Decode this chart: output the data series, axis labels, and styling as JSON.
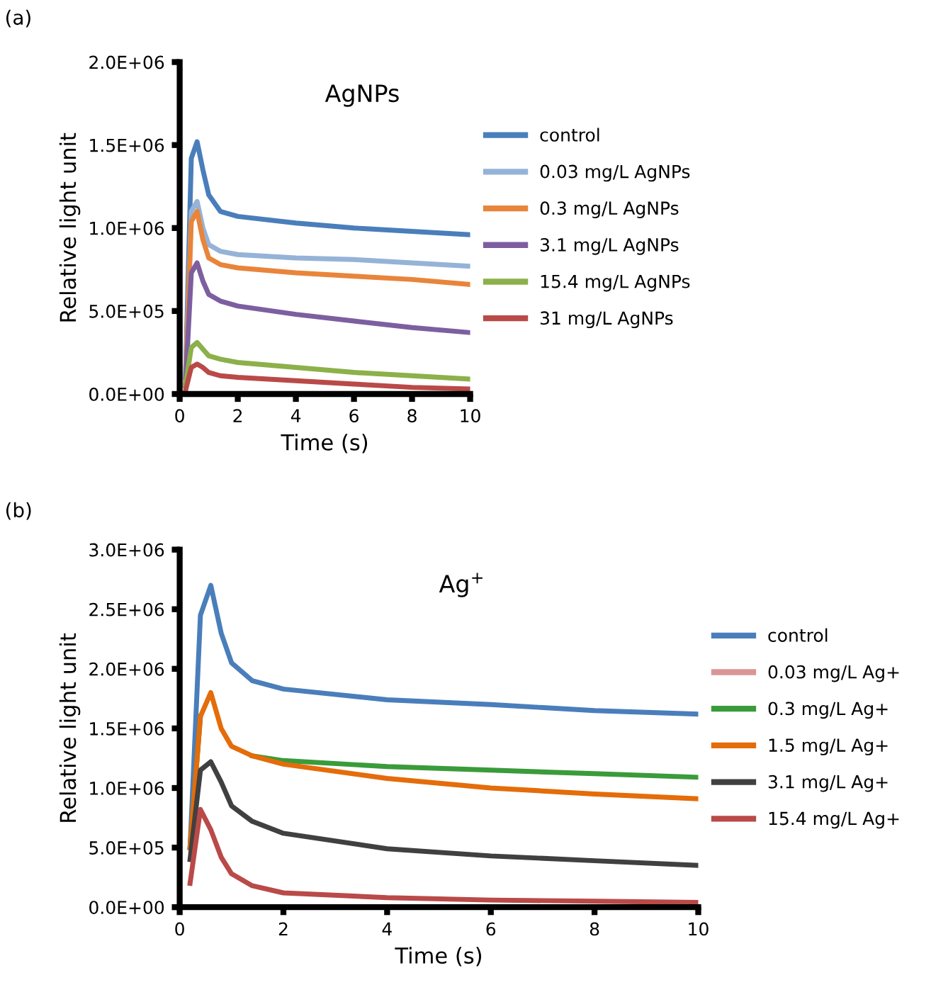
{
  "chart_data": [
    {
      "type": "line",
      "title": "AgNPs",
      "xlabel": "Time (s)",
      "ylabel": "Relative light unit",
      "annotations": [
        "(a)"
      ],
      "x": [
        0.2,
        0.4,
        0.6,
        0.8,
        1.0,
        1.4,
        2,
        4,
        6,
        8,
        10
      ],
      "xlim": [
        0,
        10
      ],
      "xticks": [
        0,
        2,
        4,
        6,
        8,
        10
      ],
      "ylim": [
        0,
        2000000
      ],
      "yticks": [
        {
          "value": 0,
          "label": "0.0E+00"
        },
        {
          "value": 500000,
          "label": "5.0E+05"
        },
        {
          "value": 1000000,
          "label": "1.0E+06"
        },
        {
          "value": 1500000,
          "label": "1.5E+06"
        },
        {
          "value": 2000000,
          "label": "2.0E+06"
        }
      ],
      "legend": "right",
      "grid": false,
      "marker": "none",
      "line_style": "solid",
      "series": [
        {
          "name": "control",
          "color": "#4a7ebb",
          "values": [
            100000,
            1420000,
            1520000,
            1350000,
            1200000,
            1100000,
            1070000,
            1030000,
            1000000,
            980000,
            960000
          ]
        },
        {
          "name": "0.03 mg/L AgNPs",
          "color": "#95b3d7",
          "values": [
            100000,
            1100000,
            1160000,
            1000000,
            900000,
            860000,
            840000,
            820000,
            810000,
            790000,
            770000
          ]
        },
        {
          "name": "0.3 mg/L AgNPs",
          "color": "#e8853a",
          "values": [
            50000,
            1040000,
            1100000,
            930000,
            820000,
            780000,
            760000,
            730000,
            710000,
            690000,
            660000
          ]
        },
        {
          "name": "3.1 mg/L AgNPs",
          "color": "#7d5fa0",
          "values": [
            50000,
            730000,
            790000,
            680000,
            600000,
            560000,
            530000,
            480000,
            440000,
            400000,
            370000
          ]
        },
        {
          "name": "15.4 mg/L AgNPs",
          "color": "#8cb04a",
          "values": [
            50000,
            280000,
            310000,
            270000,
            230000,
            210000,
            190000,
            160000,
            130000,
            110000,
            90000
          ]
        },
        {
          "name": "31 mg/L AgNPs",
          "color": "#b94a48",
          "values": [
            20000,
            160000,
            180000,
            160000,
            130000,
            110000,
            100000,
            80000,
            60000,
            40000,
            30000
          ]
        }
      ]
    },
    {
      "type": "line",
      "title": "Ag$^{+}$",
      "xlabel": "Time (s)",
      "ylabel": "Relative light unit",
      "annotations": [
        "(b)"
      ],
      "x": [
        0.2,
        0.4,
        0.6,
        0.8,
        1.0,
        1.4,
        2,
        4,
        6,
        8,
        10
      ],
      "xlim": [
        0,
        10
      ],
      "xticks": [
        0,
        2,
        4,
        6,
        8,
        10
      ],
      "ylim": [
        0,
        3000000
      ],
      "yticks": [
        {
          "value": 0,
          "label": "0.0E+00"
        },
        {
          "value": 500000,
          "label": "5.0E+05"
        },
        {
          "value": 1000000,
          "label": "1.0E+06"
        },
        {
          "value": 1500000,
          "label": "1.5E+06"
        },
        {
          "value": 2000000,
          "label": "2.0E+06"
        },
        {
          "value": 2500000,
          "label": "2.5E+06"
        },
        {
          "value": 3000000,
          "label": "3.0E+06"
        }
      ],
      "legend": "right",
      "grid": false,
      "marker": "none",
      "line_style": "solid",
      "series": [
        {
          "name": "control",
          "color": "#4a7ebb",
          "values": [
            500000,
            2450000,
            2700000,
            2300000,
            2050000,
            1900000,
            1830000,
            1740000,
            1700000,
            1650000,
            1620000
          ]
        },
        {
          "name": "0.03 mg/L Ag+",
          "color": "#d99694",
          "values": [
            null,
            null,
            null,
            null,
            null,
            null,
            null,
            null,
            null,
            null,
            null
          ]
        },
        {
          "name": "0.3 mg/L Ag+",
          "color": "#3a9b3a",
          "values": [
            500000,
            1600000,
            null,
            null,
            null,
            1270000,
            1230000,
            1180000,
            1150000,
            1120000,
            1090000
          ]
        },
        {
          "name": "1.5 mg/L Ag+",
          "color": "#e46c0a",
          "values": [
            500000,
            1600000,
            1800000,
            1500000,
            1350000,
            1270000,
            1200000,
            1080000,
            1000000,
            950000,
            910000
          ]
        },
        {
          "name": "3.1 mg/L Ag+",
          "color": "#404040",
          "values": [
            400000,
            1150000,
            1220000,
            1050000,
            850000,
            720000,
            620000,
            490000,
            430000,
            390000,
            350000
          ]
        },
        {
          "name": "15.4 mg/L Ag+",
          "color": "#b94a48",
          "values": [
            200000,
            820000,
            650000,
            420000,
            280000,
            180000,
            120000,
            80000,
            60000,
            50000,
            40000
          ]
        }
      ]
    }
  ]
}
